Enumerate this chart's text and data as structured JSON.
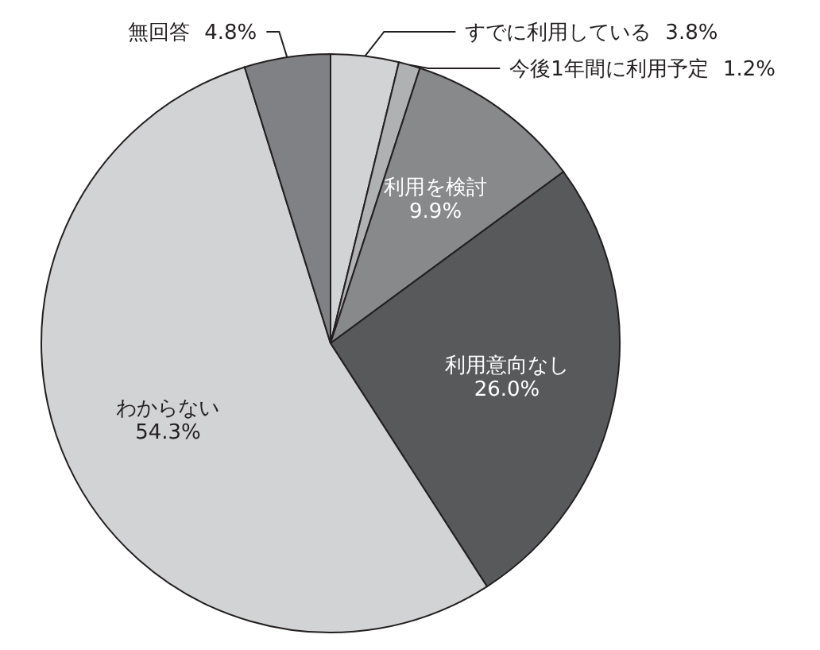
{
  "chart_data": {
    "type": "pie",
    "categories": [
      "すでに利用している",
      "今後1年間に利用予定",
      "利用を検討",
      "利用意向なし",
      "わからない",
      "無回答"
    ],
    "values": [
      3.8,
      1.2,
      9.9,
      26.0,
      54.3,
      4.8
    ],
    "colors": [
      "#d2d3d4",
      "#b0b1b3",
      "#88898b",
      "#58595b",
      "#d2d3d4",
      "#808184"
    ],
    "value_labels": [
      "3.8%",
      "1.2%",
      "9.9%",
      "26.0%",
      "54.3%",
      "4.8%"
    ],
    "legend": false
  }
}
